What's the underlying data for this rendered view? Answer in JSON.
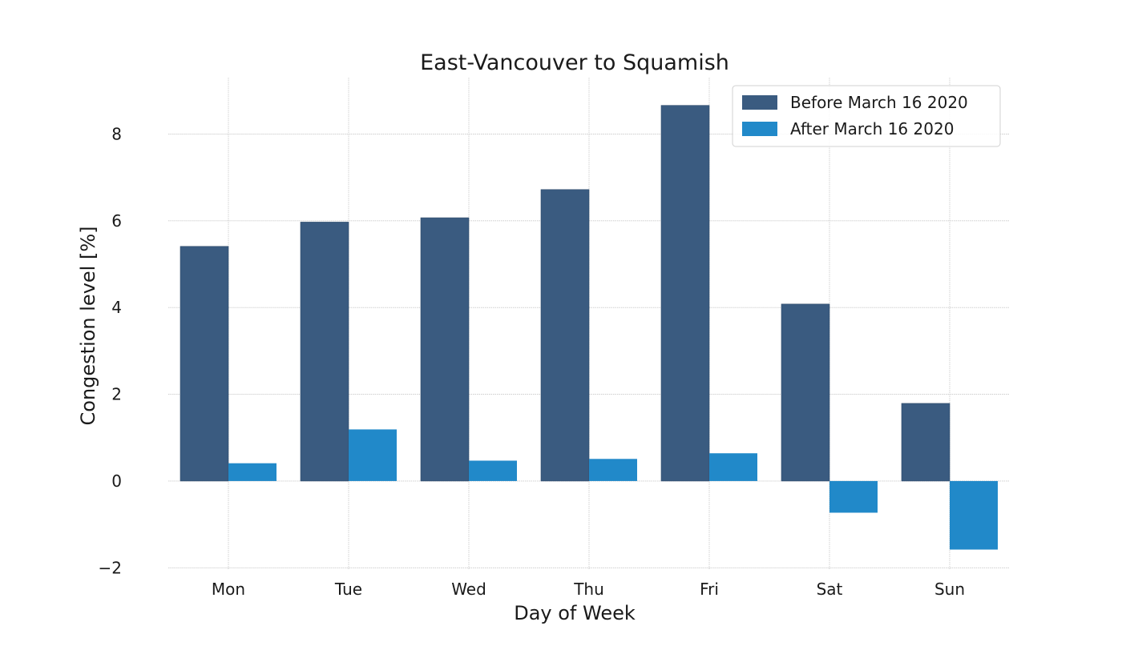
{
  "chart_data": {
    "type": "bar",
    "title": "East-Vancouver to Squamish",
    "xlabel": "Day of Week",
    "ylabel": "Congestion level [%]",
    "categories": [
      "Mon",
      "Tue",
      "Wed",
      "Thu",
      "Fri",
      "Sat",
      "Sun"
    ],
    "series": [
      {
        "name": "Before March 16 2020",
        "color": "#3a5b80",
        "values": [
          5.41,
          5.97,
          6.07,
          6.72,
          8.66,
          4.08,
          1.79
        ]
      },
      {
        "name": "After March 16 2020",
        "color": "#2189c9",
        "values": [
          0.41,
          1.19,
          0.47,
          0.51,
          0.64,
          -0.73,
          -1.58
        ]
      }
    ],
    "ylim": [
      -2.05,
      9.3
    ],
    "yticks": [
      -2,
      0,
      2,
      4,
      6,
      8
    ],
    "ytick_labels": [
      "−2",
      "0",
      "2",
      "4",
      "6",
      "8"
    ],
    "grid": true,
    "legend_position": "top-right"
  }
}
